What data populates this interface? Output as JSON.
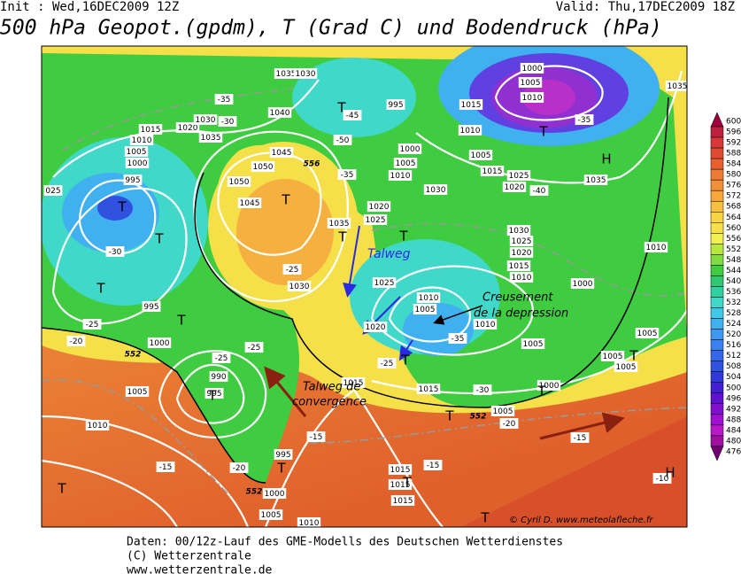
{
  "header": {
    "init": "Init : Wed,16DEC2009 12Z",
    "valid": "Valid: Thu,17DEC2009 18Z",
    "title": "500 hPa Geopot.(gpdm), T (Grad C) und Bodendruck (hPa)"
  },
  "colorbar": {
    "levels": [
      600,
      596,
      592,
      588,
      584,
      580,
      576,
      572,
      568,
      564,
      560,
      556,
      552,
      548,
      544,
      540,
      536,
      532,
      528,
      524,
      520,
      516,
      512,
      508,
      504,
      500,
      496,
      492,
      488,
      484,
      480,
      476
    ],
    "colors": [
      "#a0003c",
      "#c02040",
      "#d83838",
      "#e04a30",
      "#e86030",
      "#ee7a34",
      "#f29038",
      "#f6a83c",
      "#f8c040",
      "#f8d444",
      "#f6e04a",
      "#f0f050",
      "#b8e840",
      "#80dc40",
      "#40cc40",
      "#30c870",
      "#30d0a0",
      "#40d8c8",
      "#40c8e8",
      "#40b0f0",
      "#4098f0",
      "#3a80f0",
      "#3468e8",
      "#3050e0",
      "#3038d8",
      "#4020d0",
      "#6010d0",
      "#8010d0",
      "#a010d0",
      "#b818c8",
      "#a010a0",
      "#700070"
    ]
  },
  "isobar_labels": [
    "1040",
    "1045",
    "1050",
    "1050",
    "1045",
    "1035",
    "1030",
    "1020",
    "1025",
    "1025",
    "1020",
    "1030",
    "1000",
    "1005",
    "1010",
    "995",
    "1015",
    "1010",
    "1005",
    "1015",
    "1020",
    "1025",
    "1030",
    "1025",
    "1020",
    "1015",
    "1010",
    "1010",
    "1005",
    "1010",
    "1005",
    "1000",
    "1000",
    "1005",
    "1005",
    "1010",
    "1005",
    "1035",
    "1000",
    "1005",
    "1010",
    "1035",
    "1015",
    "1005",
    "1015",
    "1015",
    "1015",
    "1005",
    "1010",
    "1000",
    "995",
    "1015",
    "1010",
    "1005",
    "1000",
    "995",
    "995",
    "1000",
    "1005",
    "1010",
    "1015",
    "1020",
    "1035",
    "1030",
    "025",
    "995",
    "990",
    "1035",
    "1030"
  ],
  "temperature_labels": [
    "-30",
    "-25",
    "-20",
    "-25",
    "-25",
    "-25",
    "-20",
    "-15",
    "-15",
    "-35",
    "-30",
    "-25",
    "-40",
    "-35",
    "-45",
    "-50",
    "-35",
    "-15",
    "-20",
    "-15",
    "-10",
    "-35",
    "-30"
  ],
  "thickness_labels": [
    "552",
    "552",
    "552",
    "556"
  ],
  "pressure_systems": [
    "T",
    "T",
    "T",
    "T",
    "T",
    "T",
    "T",
    "T",
    "T",
    "T",
    "T",
    "T",
    "T",
    "T",
    "T",
    "T",
    "T",
    "T",
    "H",
    "H"
  ],
  "annotations": {
    "talweg": "Talweg",
    "creusement_1": "Creusement",
    "creusement_2": "de la depression",
    "convergence_1": "Talweg de",
    "convergence_2": "convergence",
    "credit": "© Cyril D. www.meteolafleche.fr"
  },
  "footer": [
    "Daten: 00/12z-Lauf des GME-Modells des Deutschen Wetterdienstes",
    "(C) Wetterzentrale",
    "www.wetterzentrale.de"
  ]
}
